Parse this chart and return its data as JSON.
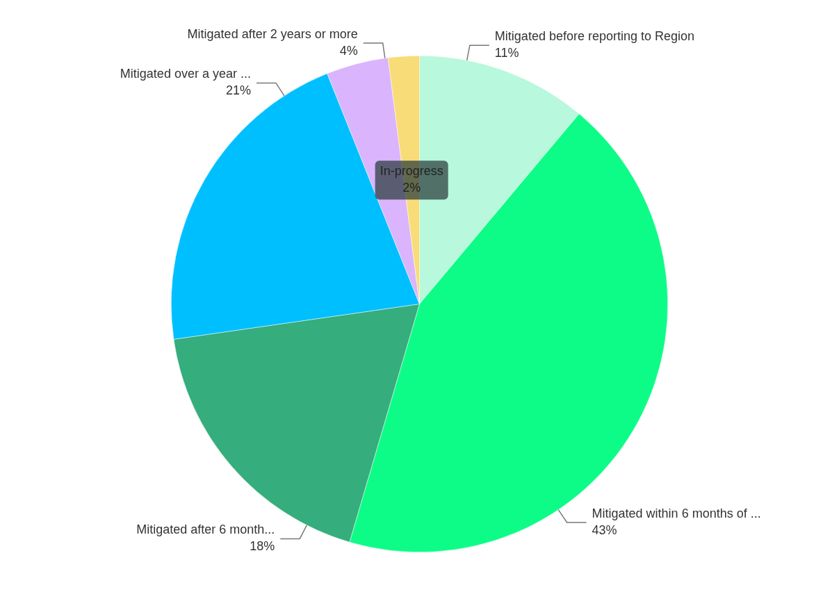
{
  "chart_data": {
    "type": "pie",
    "categories": [
      "Mitigated before reporting to Region",
      "Mitigated within 6 months of ...",
      "Mitigated after 6 month...",
      "Mitigated over a year ...",
      "Mitigated after 2 years or more",
      "In-progress"
    ],
    "values": [
      11,
      43,
      18,
      21,
      4,
      2
    ],
    "value_labels": [
      "11%",
      "43%",
      "18%",
      "21%",
      "4%",
      "2%"
    ],
    "colors": [
      "#b8f8dc",
      "#0dfc88",
      "#35ad7d",
      "#00bfff",
      "#dab4fc",
      "#f8dc78"
    ],
    "legend": false
  }
}
